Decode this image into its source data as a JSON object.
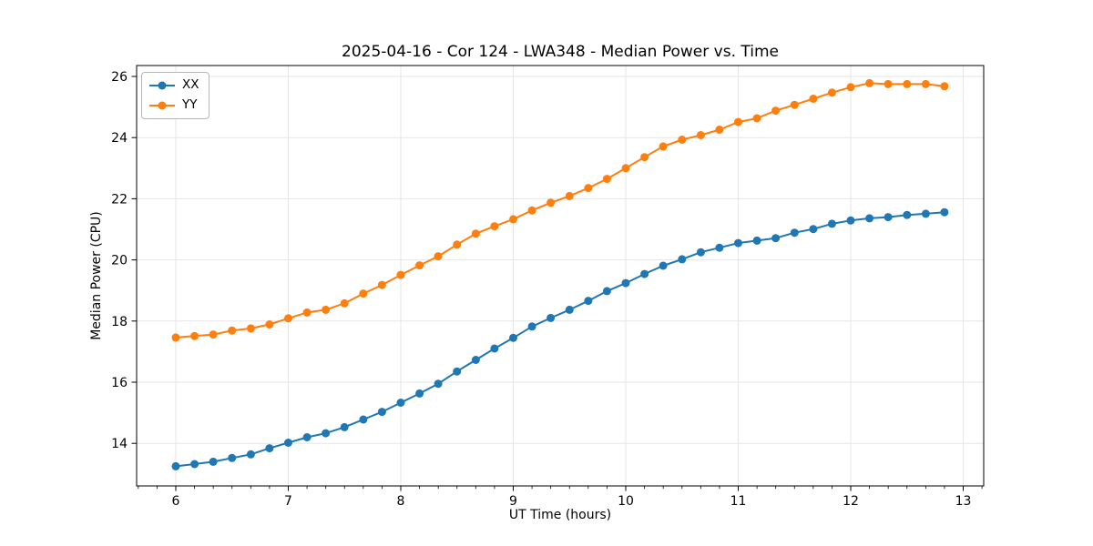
{
  "page": {
    "background": "#ffffff"
  },
  "chart_data": {
    "type": "line",
    "title": "2025-04-16 - Cor 124 - LWA348 - Median Power vs. Time",
    "xlabel": "UT Time (hours)",
    "ylabel": "Median Power (CPU)",
    "xlim": [
      5.652,
      13.182
    ],
    "ylim": [
      12.607,
      26.357
    ],
    "xticks": [
      6,
      7,
      8,
      9,
      10,
      11,
      12,
      13
    ],
    "yticks": [
      14,
      16,
      18,
      20,
      22,
      24,
      26
    ],
    "x_minor_per_unit": 6,
    "grid": true,
    "grid_color": "#e5e5e5",
    "spine_color": "#000000",
    "legend_position": "upper-left",
    "x": [
      6.0,
      6.167,
      6.333,
      6.5,
      6.667,
      6.833,
      7.0,
      7.167,
      7.333,
      7.5,
      7.667,
      7.833,
      8.0,
      8.167,
      8.333,
      8.5,
      8.667,
      8.833,
      9.0,
      9.167,
      9.333,
      9.5,
      9.667,
      9.833,
      10.0,
      10.167,
      10.333,
      10.5,
      10.667,
      10.833,
      11.0,
      11.167,
      11.333,
      11.5,
      11.667,
      11.833,
      12.0,
      12.167,
      12.333,
      12.5,
      12.667,
      12.833
    ],
    "series": [
      {
        "name": "XX",
        "color": "#1f77b4",
        "values": [
          13.25,
          13.32,
          13.4,
          13.52,
          13.64,
          13.84,
          14.02,
          14.2,
          14.33,
          14.53,
          14.78,
          15.03,
          15.33,
          15.63,
          15.95,
          16.35,
          16.73,
          17.1,
          17.45,
          17.82,
          18.1,
          18.37,
          18.66,
          18.98,
          19.24,
          19.54,
          19.81,
          20.02,
          20.25,
          20.4,
          20.55,
          20.63,
          20.71,
          20.89,
          21.01,
          21.18,
          21.29,
          21.36,
          21.4,
          21.47,
          21.51,
          21.56
        ]
      },
      {
        "name": "YY",
        "color": "#ff7f0e",
        "values": [
          17.46,
          17.51,
          17.56,
          17.69,
          17.76,
          17.89,
          18.09,
          18.28,
          18.37,
          18.58,
          18.9,
          19.18,
          19.51,
          19.82,
          20.12,
          20.5,
          20.86,
          21.1,
          21.33,
          21.62,
          21.87,
          22.09,
          22.35,
          22.65,
          23.0,
          23.36,
          23.71,
          23.93,
          24.08,
          24.26,
          24.51,
          24.63,
          24.88,
          25.07,
          25.27,
          25.47,
          25.65,
          25.78,
          25.75,
          25.75,
          25.75,
          25.68
        ]
      }
    ],
    "marker": "o",
    "marker_radius": 4.5,
    "line_width": 2
  }
}
